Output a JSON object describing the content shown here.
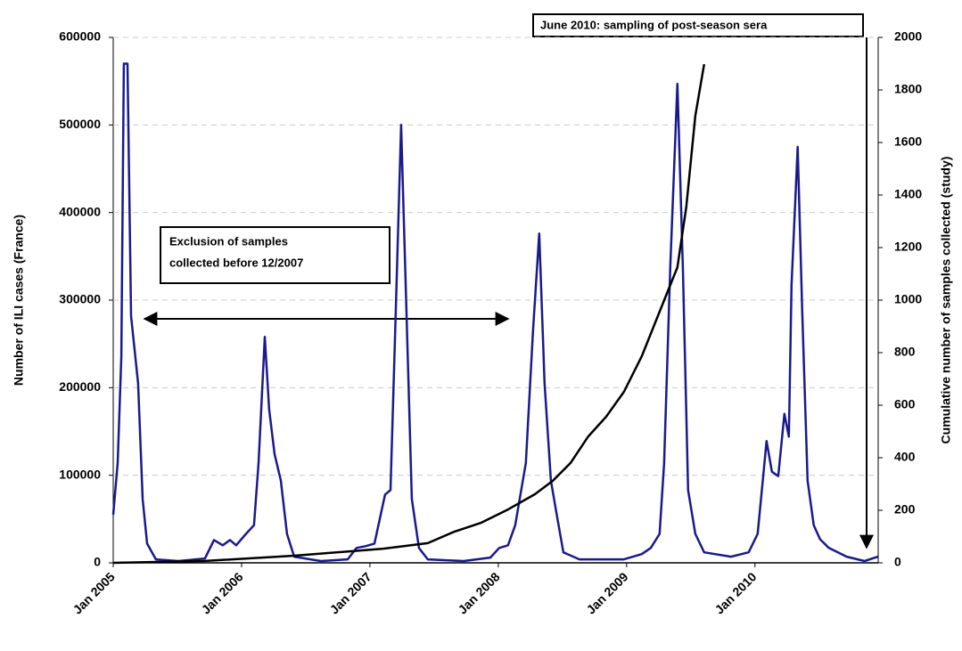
{
  "chart_data": {
    "type": "line",
    "y_label": "Number of ILI cases (France)",
    "y2_label": "Cumulative number of samples collected (study)",
    "annotations": [
      "June 2010: sampling of post-season sera",
      "Exclusion of samples",
      "collected before 12/2007"
    ],
    "xlim": [
      2005,
      2010.96
    ],
    "xticks": [
      {
        "value": 2005,
        "label": "Jan 2005"
      },
      {
        "value": 2006,
        "label": "Jan 2006"
      },
      {
        "value": 2007,
        "label": "Jan 2007"
      },
      {
        "value": 2008,
        "label": "Jan 2008"
      },
      {
        "value": 2009,
        "label": "Jan 2009"
      },
      {
        "value": 2010,
        "label": "Jan 2010"
      }
    ],
    "ylim": [
      0,
      600000
    ],
    "yticks": [
      0,
      100000,
      200000,
      300000,
      400000,
      500000,
      600000
    ],
    "y2lim": [
      0,
      2000
    ],
    "y2ticks": [
      0,
      200,
      400,
      600,
      800,
      1000,
      1200,
      1400,
      1600,
      1800,
      2000
    ],
    "grid": true,
    "series": [
      {
        "color": "#1a1a8c",
        "x": [
          2005.0,
          2005.035,
          2005.063,
          2005.083,
          2005.111,
          2005.139,
          2005.194,
          2005.229,
          2005.264,
          2005.333,
          2005.507,
          2005.715,
          2005.785,
          2005.854,
          2005.91,
          2005.958,
          2006.028,
          2006.097,
          2006.132,
          2006.181,
          2006.215,
          2006.257,
          2006.306,
          2006.354,
          2006.41,
          2006.618,
          2006.826,
          2006.896,
          2006.965,
          2007.035,
          2007.118,
          2007.16,
          2007.201,
          2007.243,
          2007.285,
          2007.326,
          2007.382,
          2007.451,
          2007.729,
          2007.938,
          2008.007,
          2008.076,
          2008.132,
          2008.215,
          2008.271,
          2008.319,
          2008.361,
          2008.41,
          2008.458,
          2008.507,
          2008.632,
          2008.979,
          2009.118,
          2009.188,
          2009.257,
          2009.292,
          2009.34,
          2009.396,
          2009.438,
          2009.479,
          2009.535,
          2009.604,
          2009.813,
          2009.951,
          2010.021,
          2010.09,
          2010.132,
          2010.181,
          2010.229,
          2010.264,
          2010.285,
          2010.333,
          2010.368,
          2010.41,
          2010.458,
          2010.507,
          2010.576,
          2010.715,
          2010.854,
          2010.958
        ],
        "values": [
          55000,
          114000,
          236000,
          570000,
          570000,
          282000,
          205000,
          73000,
          22000,
          4000,
          2000,
          5000,
          26000,
          20000,
          26000,
          20000,
          32000,
          43000,
          114000,
          258000,
          175000,
          124000,
          94000,
          33000,
          7000,
          2000,
          4000,
          17000,
          19000,
          22000,
          78000,
          83000,
          287000,
          500000,
          287000,
          73000,
          17000,
          4000,
          2000,
          6000,
          17000,
          20000,
          43000,
          114000,
          266000,
          376000,
          205000,
          94000,
          53000,
          12000,
          4000,
          4000,
          10000,
          17000,
          33000,
          114000,
          338000,
          547000,
          338000,
          83000,
          33000,
          12000,
          7000,
          12000,
          33000,
          139000,
          104000,
          99000,
          170000,
          144000,
          317000,
          475000,
          287000,
          94000,
          43000,
          27000,
          17000,
          7000,
          2000,
          7000
        ]
      },
      {
        "color": "#000000",
        "axis": "y2",
        "x": [
          2005.0,
          2005.715,
          2006.41,
          2007.104,
          2007.451,
          2007.66,
          2007.868,
          2008.076,
          2008.285,
          2008.424,
          2008.563,
          2008.701,
          2008.84,
          2008.979,
          2009.118,
          2009.257,
          2009.396,
          2009.465,
          2009.535,
          2009.604
        ],
        "values": [
          0,
          7,
          27,
          54,
          75,
          119,
          153,
          203,
          261,
          312,
          380,
          481,
          556,
          651,
          786,
          956,
          1125,
          1356,
          1702,
          1898
        ]
      }
    ]
  }
}
